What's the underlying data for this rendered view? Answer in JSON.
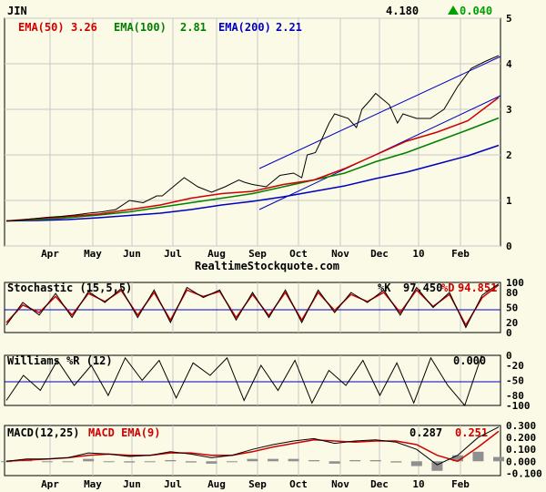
{
  "chart_data": [
    {
      "type": "line",
      "panel": "price",
      "ticker": "JIN",
      "last_price": "4.180",
      "change": "0.040",
      "change_direction": "up",
      "watermark": "RealtimeStockquote.com",
      "y_axis": {
        "ticks": [
          "0",
          "1",
          "2",
          "3",
          "4",
          "5"
        ],
        "ylim": [
          0,
          5
        ]
      },
      "x_axis": {
        "ticks": [
          "Apr",
          "May",
          "Jun",
          "Jul",
          "Aug",
          "Sep",
          "Oct",
          "Nov",
          "Dec",
          "10",
          "Feb"
        ]
      },
      "legend": [
        {
          "label": "EMA(50)",
          "value": "3.26"
        },
        {
          "label": "EMA(100)",
          "value": "2.81"
        },
        {
          "label": "EMA(200)",
          "value": "2.21"
        }
      ],
      "price_series_approx": {
        "x": [
          0,
          5,
          10,
          15,
          20,
          25,
          30,
          35,
          40,
          45,
          50,
          55,
          57,
          60,
          65,
          70,
          75,
          80,
          85,
          87,
          90,
          95,
          100,
          105,
          108,
          110,
          113,
          115,
          118,
          120,
          125,
          128,
          130,
          133,
          135,
          140,
          143,
          145,
          150,
          155,
          160,
          165,
          170,
          175,
          180
        ],
        "close": [
          0.55,
          0.57,
          0.6,
          0.63,
          0.65,
          0.68,
          0.72,
          0.75,
          0.8,
          1.0,
          0.95,
          1.1,
          1.1,
          1.25,
          1.5,
          1.3,
          1.18,
          1.3,
          1.45,
          1.4,
          1.35,
          1.3,
          1.55,
          1.6,
          1.5,
          2.0,
          2.05,
          2.3,
          2.7,
          2.9,
          2.8,
          2.6,
          3.0,
          3.2,
          3.35,
          3.1,
          2.7,
          2.9,
          2.8,
          2.8,
          3.0,
          3.5,
          3.9,
          4.05,
          4.18
        ]
      },
      "ema50_approx": [
        0.55,
        0.6,
        0.65,
        0.7,
        0.8,
        0.9,
        1.05,
        1.15,
        1.2,
        1.35,
        1.45,
        1.7,
        2.0,
        2.3,
        2.5,
        2.75,
        3.26
      ],
      "ema100_approx": [
        0.55,
        0.58,
        0.62,
        0.68,
        0.75,
        0.85,
        0.95,
        1.05,
        1.15,
        1.3,
        1.45,
        1.6,
        1.85,
        2.05,
        2.3,
        2.55,
        2.81
      ],
      "ema200_approx": [
        0.55,
        0.56,
        0.58,
        0.62,
        0.67,
        0.72,
        0.8,
        0.9,
        0.98,
        1.08,
        1.2,
        1.32,
        1.48,
        1.62,
        1.8,
        1.98,
        2.21
      ]
    },
    {
      "type": "line",
      "panel": "stochastic",
      "title": "Stochastic (15,5,5)",
      "k_label": "%K",
      "k_value": "97.450",
      "d_label": "%D",
      "d_value": "94.851",
      "y_axis": {
        "ticks": [
          "0",
          "20",
          "50",
          "80",
          "100"
        ],
        "ylim": [
          0,
          100
        ]
      },
      "k_approx": [
        15,
        60,
        35,
        78,
        30,
        82,
        60,
        88,
        30,
        85,
        20,
        90,
        70,
        85,
        25,
        80,
        30,
        85,
        20,
        85,
        40,
        80,
        60,
        85,
        35,
        90,
        50,
        80,
        10,
        75,
        97
      ],
      "d_approx": [
        20,
        55,
        40,
        72,
        35,
        78,
        62,
        84,
        35,
        80,
        25,
        85,
        72,
        82,
        30,
        76,
        34,
        80,
        25,
        80,
        44,
        76,
        62,
        80,
        40,
        85,
        52,
        76,
        15,
        70,
        95
      ]
    },
    {
      "type": "line",
      "panel": "williams",
      "title": "Williams %R (12)",
      "value": "0.000",
      "y_axis": {
        "ticks": [
          "0",
          "-20",
          "-50",
          "-80",
          "-100"
        ],
        "ylim": [
          -100,
          0
        ]
      },
      "values_approx": [
        -90,
        -40,
        -70,
        -10,
        -60,
        -20,
        -80,
        -5,
        -50,
        -10,
        -85,
        -15,
        -40,
        -5,
        -90,
        -20,
        -70,
        -10,
        -95,
        -30,
        -60,
        -10,
        -80,
        -15,
        -95,
        -5,
        -60,
        -100,
        0,
        0
      ]
    },
    {
      "type": "line",
      "panel": "macd",
      "title": "MACD(12,25)",
      "macd_value": "0.287",
      "signal_label": "MACD EMA(9)",
      "signal_value": "0.251",
      "y_axis": {
        "ticks": [
          "-0.100",
          "0.000",
          "0.100",
          "0.200",
          "0.300"
        ],
        "ylim": [
          -0.12,
          0.3
        ]
      },
      "x_axis": {
        "ticks": [
          "Apr",
          "May",
          "Jun",
          "Jul",
          "Aug",
          "Sep",
          "Oct",
          "Nov",
          "Dec",
          "10",
          "Feb"
        ]
      },
      "macd_approx": [
        0.0,
        0.02,
        0.02,
        0.03,
        0.07,
        0.06,
        0.04,
        0.05,
        0.08,
        0.06,
        0.03,
        0.05,
        0.1,
        0.14,
        0.17,
        0.19,
        0.15,
        0.17,
        0.18,
        0.16,
        0.1,
        -0.03,
        0.05,
        0.2,
        0.287
      ],
      "signal_approx": [
        0.0,
        0.01,
        0.02,
        0.03,
        0.05,
        0.06,
        0.05,
        0.05,
        0.07,
        0.07,
        0.05,
        0.05,
        0.08,
        0.12,
        0.15,
        0.18,
        0.17,
        0.16,
        0.17,
        0.17,
        0.14,
        0.05,
        0.0,
        0.12,
        0.251
      ]
    }
  ],
  "colors": {
    "background": "#fafae6",
    "price": "#000000",
    "ema50": "#d00000",
    "ema100": "#008000",
    "ema200": "#0000c0",
    "channel": "#0000c0",
    "up_arrow": "#00a000",
    "grid": "#c8c8c8"
  }
}
